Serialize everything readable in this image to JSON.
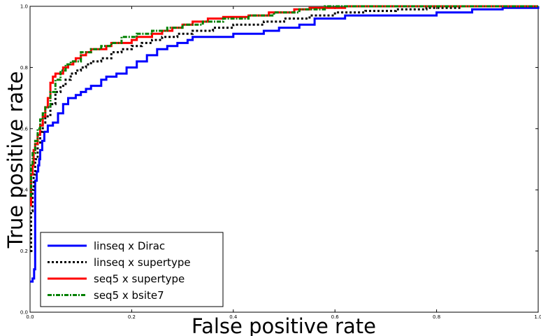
{
  "chart_data": {
    "type": "line",
    "title": "",
    "xlabel": "False positive rate",
    "ylabel": "True positive rate",
    "xlim": [
      0.0,
      1.0
    ],
    "ylim": [
      0.0,
      1.0
    ],
    "xticks": [
      "0.0",
      "0.2",
      "0.4",
      "0.6",
      "0.8",
      "1.0"
    ],
    "yticks": [
      "0.0",
      "0.2",
      "0.4",
      "0.6",
      "0.8",
      "1.0"
    ],
    "grid": false,
    "legend_position": "lower-left",
    "series": [
      {
        "name": "linseq x Dirac",
        "color": "#0000ff",
        "style": "solid",
        "points": [
          [
            0.0,
            0.1
          ],
          [
            0.005,
            0.11
          ],
          [
            0.008,
            0.14
          ],
          [
            0.01,
            0.43
          ],
          [
            0.013,
            0.46
          ],
          [
            0.016,
            0.48
          ],
          [
            0.018,
            0.5
          ],
          [
            0.02,
            0.53
          ],
          [
            0.024,
            0.56
          ],
          [
            0.028,
            0.59
          ],
          [
            0.035,
            0.61
          ],
          [
            0.045,
            0.62
          ],
          [
            0.055,
            0.65
          ],
          [
            0.065,
            0.68
          ],
          [
            0.075,
            0.7
          ],
          [
            0.09,
            0.71
          ],
          [
            0.1,
            0.72
          ],
          [
            0.11,
            0.73
          ],
          [
            0.12,
            0.74
          ],
          [
            0.14,
            0.76
          ],
          [
            0.15,
            0.77
          ],
          [
            0.17,
            0.78
          ],
          [
            0.19,
            0.8
          ],
          [
            0.21,
            0.82
          ],
          [
            0.23,
            0.84
          ],
          [
            0.25,
            0.86
          ],
          [
            0.27,
            0.87
          ],
          [
            0.29,
            0.88
          ],
          [
            0.31,
            0.89
          ],
          [
            0.32,
            0.9
          ],
          [
            0.36,
            0.9
          ],
          [
            0.4,
            0.91
          ],
          [
            0.43,
            0.91
          ],
          [
            0.46,
            0.92
          ],
          [
            0.49,
            0.93
          ],
          [
            0.53,
            0.94
          ],
          [
            0.56,
            0.96
          ],
          [
            0.59,
            0.96
          ],
          [
            0.62,
            0.97
          ],
          [
            0.7,
            0.97
          ],
          [
            0.8,
            0.98
          ],
          [
            0.87,
            0.99
          ],
          [
            0.93,
            0.995
          ],
          [
            1.0,
            1.0
          ]
        ]
      },
      {
        "name": "linseq x supertype",
        "color": "#000000",
        "style": "dotted",
        "points": [
          [
            0.0,
            0.2
          ],
          [
            0.002,
            0.33
          ],
          [
            0.005,
            0.4
          ],
          [
            0.007,
            0.45
          ],
          [
            0.01,
            0.5
          ],
          [
            0.015,
            0.55
          ],
          [
            0.02,
            0.59
          ],
          [
            0.025,
            0.62
          ],
          [
            0.03,
            0.64
          ],
          [
            0.04,
            0.68
          ],
          [
            0.05,
            0.72
          ],
          [
            0.06,
            0.74
          ],
          [
            0.07,
            0.76
          ],
          [
            0.08,
            0.78
          ],
          [
            0.09,
            0.79
          ],
          [
            0.1,
            0.8
          ],
          [
            0.11,
            0.81
          ],
          [
            0.12,
            0.82
          ],
          [
            0.14,
            0.83
          ],
          [
            0.16,
            0.85
          ],
          [
            0.18,
            0.86
          ],
          [
            0.2,
            0.87
          ],
          [
            0.22,
            0.88
          ],
          [
            0.24,
            0.89
          ],
          [
            0.26,
            0.9
          ],
          [
            0.29,
            0.91
          ],
          [
            0.32,
            0.92
          ],
          [
            0.36,
            0.93
          ],
          [
            0.4,
            0.94
          ],
          [
            0.46,
            0.95
          ],
          [
            0.5,
            0.96
          ],
          [
            0.55,
            0.97
          ],
          [
            0.6,
            0.98
          ],
          [
            0.66,
            0.985
          ],
          [
            0.72,
            0.99
          ],
          [
            0.78,
            0.995
          ],
          [
            0.85,
            1.0
          ],
          [
            1.0,
            1.0
          ]
        ]
      },
      {
        "name": "seq5 x supertype",
        "color": "#ff0000",
        "style": "solid",
        "points": [
          [
            0.0,
            0.35
          ],
          [
            0.002,
            0.45
          ],
          [
            0.005,
            0.48
          ],
          [
            0.007,
            0.53
          ],
          [
            0.01,
            0.55
          ],
          [
            0.015,
            0.58
          ],
          [
            0.02,
            0.61
          ],
          [
            0.025,
            0.64
          ],
          [
            0.03,
            0.67
          ],
          [
            0.035,
            0.7
          ],
          [
            0.04,
            0.75
          ],
          [
            0.045,
            0.77
          ],
          [
            0.05,
            0.78
          ],
          [
            0.06,
            0.78
          ],
          [
            0.065,
            0.8
          ],
          [
            0.075,
            0.81
          ],
          [
            0.085,
            0.82
          ],
          [
            0.09,
            0.83
          ],
          [
            0.1,
            0.84
          ],
          [
            0.11,
            0.85
          ],
          [
            0.12,
            0.86
          ],
          [
            0.14,
            0.86
          ],
          [
            0.15,
            0.87
          ],
          [
            0.16,
            0.88
          ],
          [
            0.2,
            0.89
          ],
          [
            0.21,
            0.9
          ],
          [
            0.24,
            0.91
          ],
          [
            0.26,
            0.92
          ],
          [
            0.28,
            0.93
          ],
          [
            0.3,
            0.94
          ],
          [
            0.32,
            0.95
          ],
          [
            0.35,
            0.96
          ],
          [
            0.38,
            0.965
          ],
          [
            0.43,
            0.97
          ],
          [
            0.47,
            0.98
          ],
          [
            0.52,
            0.99
          ],
          [
            0.55,
            0.995
          ],
          [
            0.62,
            1.0
          ],
          [
            1.0,
            1.0
          ]
        ]
      },
      {
        "name": "seq5 x bsite7",
        "color": "#008000",
        "style": "dashdot",
        "points": [
          [
            0.0,
            0.38
          ],
          [
            0.002,
            0.48
          ],
          [
            0.005,
            0.52
          ],
          [
            0.01,
            0.56
          ],
          [
            0.015,
            0.6
          ],
          [
            0.02,
            0.63
          ],
          [
            0.025,
            0.65
          ],
          [
            0.03,
            0.67
          ],
          [
            0.04,
            0.72
          ],
          [
            0.05,
            0.76
          ],
          [
            0.06,
            0.79
          ],
          [
            0.07,
            0.81
          ],
          [
            0.08,
            0.82
          ],
          [
            0.1,
            0.85
          ],
          [
            0.12,
            0.86
          ],
          [
            0.14,
            0.87
          ],
          [
            0.16,
            0.88
          ],
          [
            0.18,
            0.9
          ],
          [
            0.21,
            0.91
          ],
          [
            0.24,
            0.92
          ],
          [
            0.27,
            0.93
          ],
          [
            0.3,
            0.94
          ],
          [
            0.34,
            0.95
          ],
          [
            0.38,
            0.96
          ],
          [
            0.43,
            0.97
          ],
          [
            0.48,
            0.98
          ],
          [
            0.53,
            0.99
          ],
          [
            0.58,
            1.0
          ],
          [
            1.0,
            1.0
          ]
        ]
      }
    ]
  }
}
